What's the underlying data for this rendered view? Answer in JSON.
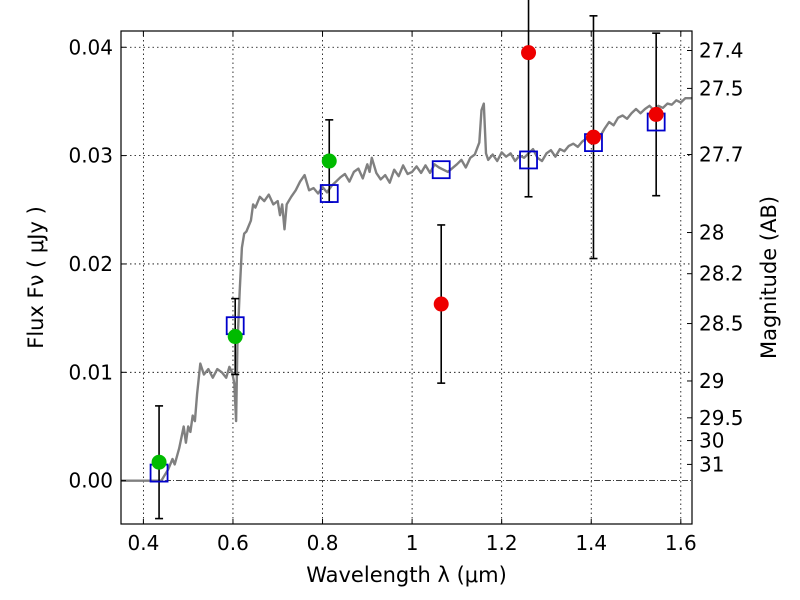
{
  "chart_data": {
    "type": "scatter",
    "title": "",
    "xlabel": "Wavelength  λ (μm)",
    "ylabel": "Flux  Fν  ( μJy )",
    "ylabel_right": "Magnitude (AB)",
    "xlim": [
      0.35,
      1.625
    ],
    "ylim": [
      -0.004,
      0.0415
    ],
    "grid": true,
    "x_ticks": [
      0.4,
      0.6,
      0.8,
      1.0,
      1.2,
      1.4,
      1.6
    ],
    "x_tick_labels": [
      "0.4",
      "0.6",
      "0.8",
      "1",
      "1.2",
      "1.4",
      "1.6"
    ],
    "y_ticks": [
      0.0,
      0.01,
      0.02,
      0.03,
      0.04
    ],
    "y_tick_labels": [
      "0.00",
      "0.01",
      "0.02",
      "0.03",
      "0.04"
    ],
    "right_ticks": [
      {
        "label": "27.4",
        "flux": 0.0397
      },
      {
        "label": "27.5",
        "flux": 0.0362
      },
      {
        "label": "27.7",
        "flux": 0.0301
      },
      {
        "label": "28",
        "flux": 0.0229
      },
      {
        "label": "28.2",
        "flux": 0.0191
      },
      {
        "label": "28.5",
        "flux": 0.0145
      },
      {
        "label": "29",
        "flux": 0.0092
      },
      {
        "label": "29.5",
        "flux": 0.0058
      },
      {
        "label": "30",
        "flux": 0.0037
      },
      {
        "label": "31",
        "flux": 0.0015
      }
    ],
    "zero_line": 0.0,
    "series": [
      {
        "kind": "spectrum",
        "color": "#808080",
        "points": [
          [
            0.35,
            0.0
          ],
          [
            0.44,
            0.0
          ],
          [
            0.455,
            0.001
          ],
          [
            0.465,
            0.002
          ],
          [
            0.47,
            0.0015
          ],
          [
            0.48,
            0.003
          ],
          [
            0.49,
            0.005
          ],
          [
            0.495,
            0.0035
          ],
          [
            0.5,
            0.005
          ],
          [
            0.505,
            0.0045
          ],
          [
            0.51,
            0.006
          ],
          [
            0.515,
            0.0055
          ],
          [
            0.52,
            0.008
          ],
          [
            0.527,
            0.0108
          ],
          [
            0.535,
            0.0098
          ],
          [
            0.545,
            0.0103
          ],
          [
            0.555,
            0.0095
          ],
          [
            0.565,
            0.0103
          ],
          [
            0.575,
            0.01
          ],
          [
            0.585,
            0.0095
          ],
          [
            0.592,
            0.0105
          ],
          [
            0.598,
            0.01
          ],
          [
            0.603,
            0.009
          ],
          [
            0.607,
            0.0055
          ],
          [
            0.61,
            0.0125
          ],
          [
            0.615,
            0.0175
          ],
          [
            0.62,
            0.0215
          ],
          [
            0.625,
            0.0228
          ],
          [
            0.63,
            0.023
          ],
          [
            0.64,
            0.024
          ],
          [
            0.645,
            0.0255
          ],
          [
            0.65,
            0.0252
          ],
          [
            0.66,
            0.0262
          ],
          [
            0.67,
            0.0258
          ],
          [
            0.68,
            0.0264
          ],
          [
            0.69,
            0.0255
          ],
          [
            0.7,
            0.0258
          ],
          [
            0.705,
            0.0245
          ],
          [
            0.71,
            0.0255
          ],
          [
            0.715,
            0.0232
          ],
          [
            0.72,
            0.0255
          ],
          [
            0.73,
            0.0262
          ],
          [
            0.74,
            0.0268
          ],
          [
            0.75,
            0.0276
          ],
          [
            0.76,
            0.0282
          ],
          [
            0.77,
            0.0268
          ],
          [
            0.78,
            0.027
          ],
          [
            0.79,
            0.0265
          ],
          [
            0.8,
            0.0271
          ],
          [
            0.81,
            0.0266
          ],
          [
            0.82,
            0.0272
          ],
          [
            0.83,
            0.0276
          ],
          [
            0.84,
            0.028
          ],
          [
            0.85,
            0.0283
          ],
          [
            0.86,
            0.0276
          ],
          [
            0.87,
            0.0285
          ],
          [
            0.88,
            0.0288
          ],
          [
            0.89,
            0.0279
          ],
          [
            0.9,
            0.0292
          ],
          [
            0.905,
            0.0285
          ],
          [
            0.91,
            0.0298
          ],
          [
            0.92,
            0.0284
          ],
          [
            0.93,
            0.0278
          ],
          [
            0.94,
            0.0282
          ],
          [
            0.95,
            0.0275
          ],
          [
            0.96,
            0.0287
          ],
          [
            0.97,
            0.0281
          ],
          [
            0.98,
            0.0291
          ],
          [
            0.99,
            0.0283
          ],
          [
            1.0,
            0.0285
          ],
          [
            1.01,
            0.029
          ],
          [
            1.02,
            0.0284
          ],
          [
            1.03,
            0.0291
          ],
          [
            1.04,
            0.0284
          ],
          [
            1.05,
            0.0292
          ],
          [
            1.06,
            0.0289
          ],
          [
            1.08,
            0.0285
          ],
          [
            1.1,
            0.0292
          ],
          [
            1.11,
            0.0296
          ],
          [
            1.12,
            0.0289
          ],
          [
            1.13,
            0.0298
          ],
          [
            1.14,
            0.0301
          ],
          [
            1.15,
            0.0312
          ],
          [
            1.155,
            0.0342
          ],
          [
            1.16,
            0.0348
          ],
          [
            1.165,
            0.0302
          ],
          [
            1.17,
            0.0296
          ],
          [
            1.18,
            0.0301
          ],
          [
            1.19,
            0.0295
          ],
          [
            1.2,
            0.0303
          ],
          [
            1.21,
            0.0299
          ],
          [
            1.22,
            0.0302
          ],
          [
            1.23,
            0.0295
          ],
          [
            1.24,
            0.03
          ],
          [
            1.25,
            0.0298
          ],
          [
            1.26,
            0.0302
          ],
          [
            1.27,
            0.0306
          ],
          [
            1.28,
            0.0298
          ],
          [
            1.29,
            0.0295
          ],
          [
            1.3,
            0.0302
          ],
          [
            1.31,
            0.0305
          ],
          [
            1.32,
            0.0299
          ],
          [
            1.33,
            0.0306
          ],
          [
            1.34,
            0.0304
          ],
          [
            1.35,
            0.0309
          ],
          [
            1.36,
            0.0311
          ],
          [
            1.37,
            0.0308
          ],
          [
            1.38,
            0.0313
          ],
          [
            1.39,
            0.0316
          ],
          [
            1.4,
            0.0319
          ],
          [
            1.41,
            0.0322
          ],
          [
            1.42,
            0.0318
          ],
          [
            1.43,
            0.0325
          ],
          [
            1.44,
            0.0331
          ],
          [
            1.45,
            0.0328
          ],
          [
            1.46,
            0.0335
          ],
          [
            1.47,
            0.0337
          ],
          [
            1.48,
            0.0334
          ],
          [
            1.49,
            0.0339
          ],
          [
            1.5,
            0.0343
          ],
          [
            1.51,
            0.0339
          ],
          [
            1.52,
            0.0343
          ],
          [
            1.53,
            0.0346
          ],
          [
            1.54,
            0.0342
          ],
          [
            1.55,
            0.0346
          ],
          [
            1.56,
            0.0344
          ],
          [
            1.57,
            0.0348
          ],
          [
            1.58,
            0.0347
          ],
          [
            1.59,
            0.0351
          ],
          [
            1.6,
            0.0349
          ],
          [
            1.61,
            0.0353
          ],
          [
            1.625,
            0.0353
          ]
        ]
      },
      {
        "kind": "model_squares",
        "color": "#0000cc",
        "x": [
          0.435,
          0.605,
          0.815,
          1.065,
          1.26,
          1.405,
          1.545
        ],
        "y": [
          0.0007,
          0.0143,
          0.0265,
          0.0287,
          0.0296,
          0.0312,
          0.0331
        ]
      },
      {
        "kind": "observed_green",
        "color": "#00bb00",
        "x": [
          0.435,
          0.605,
          0.815
        ],
        "y": [
          0.0017,
          0.0133,
          0.0295
        ],
        "err": [
          0.0052,
          0.0035,
          0.0038
        ]
      },
      {
        "kind": "observed_red",
        "color": "#ee0000",
        "x": [
          1.065,
          1.26,
          1.405,
          1.545
        ],
        "y": [
          0.0163,
          0.0395,
          0.0317,
          0.0338
        ],
        "err": [
          0.0073,
          0.0133,
          0.0112,
          0.0075
        ]
      }
    ]
  }
}
